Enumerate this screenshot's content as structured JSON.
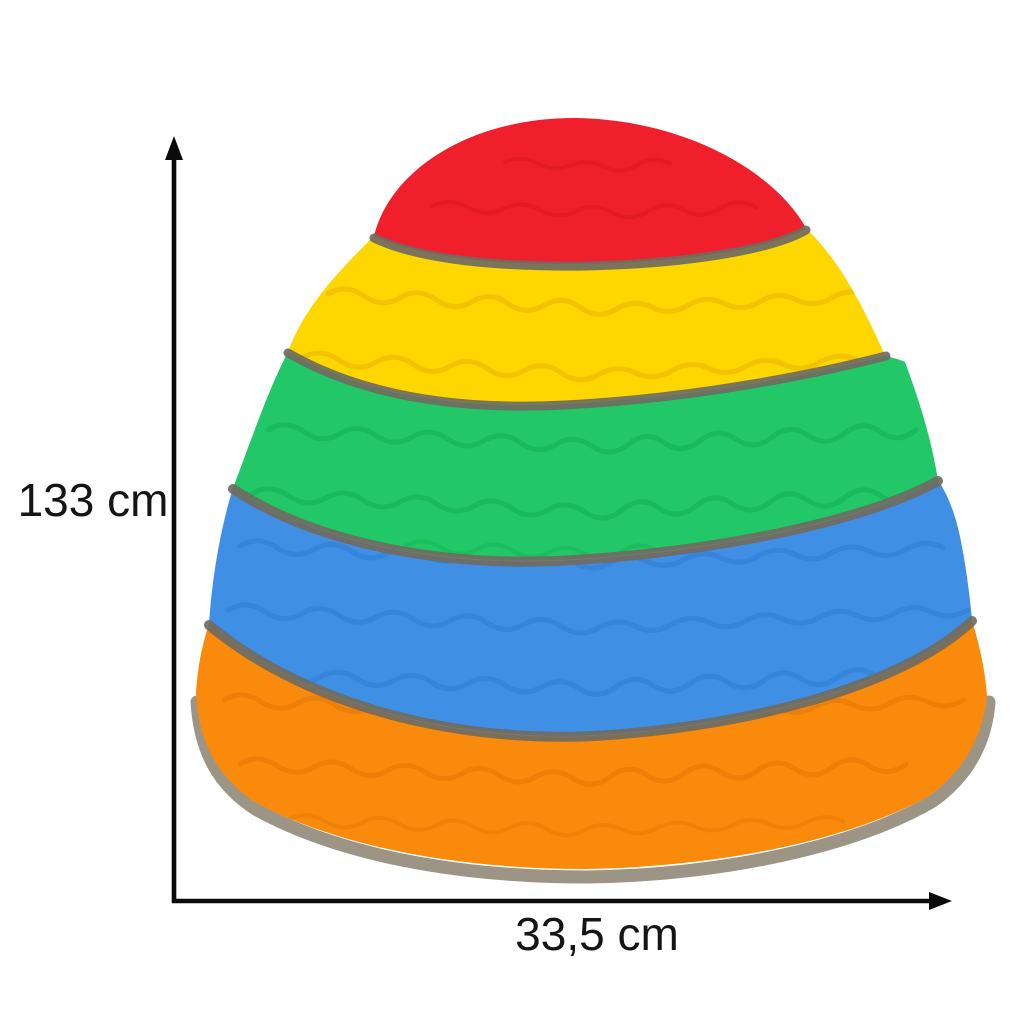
{
  "background": "#ffffff",
  "subject": "stack of five colorful balance stepping stones",
  "dimensions": {
    "height_label": "133 cm",
    "width_label": "33,5 cm",
    "line_color": "#0b0b0b",
    "text_color": "#151515"
  },
  "product": {
    "stones": [
      {
        "name": "red",
        "fill": "#ef1f2b",
        "wave": "#d41320"
      },
      {
        "name": "yellow",
        "fill": "#fed701",
        "wave": "#e3af00"
      },
      {
        "name": "green",
        "fill": "#22c768",
        "wave": "#0fae53"
      },
      {
        "name": "blue",
        "fill": "#3f8fe4",
        "wave": "#2a7cd2"
      },
      {
        "name": "orange",
        "fill": "#fa8a0c",
        "wave": "#e07400"
      }
    ],
    "rim_color": "#6f6b60",
    "base_rim_color": "#9c9484"
  }
}
